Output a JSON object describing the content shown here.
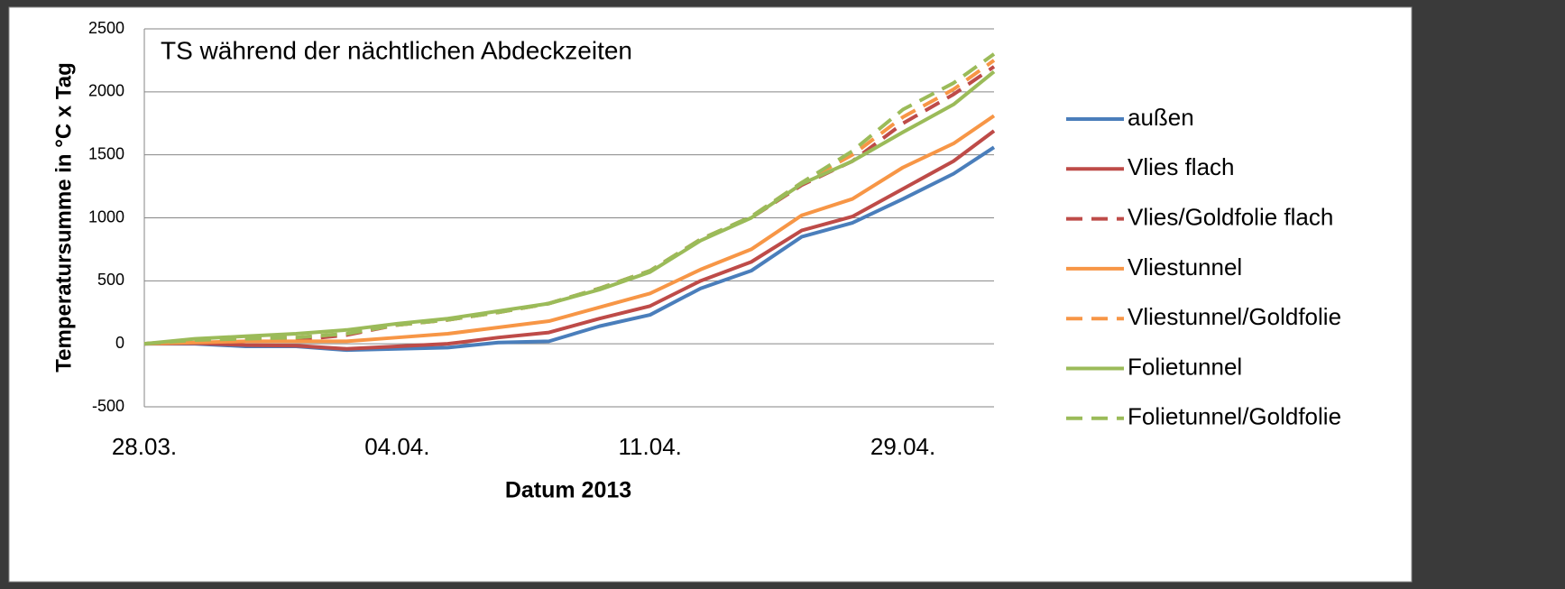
{
  "chart_data": {
    "type": "line",
    "title": "TS während der nächtlichen Abdeckzeiten",
    "x_label": "Datum 2013",
    "y_label": "Temperatursumme in °C x Tag",
    "x": [
      0,
      2,
      4,
      6,
      8,
      10,
      12,
      14,
      16,
      18,
      20,
      22,
      24,
      26,
      28,
      30,
      32,
      33.6
    ],
    "xlim": [
      0,
      33.6
    ],
    "xticks": [
      {
        "value": 0,
        "label": "28.03."
      },
      {
        "value": 10,
        "label": "04.04."
      },
      {
        "value": 20,
        "label": "11.04."
      },
      {
        "value": 30,
        "label": "29.04."
      }
    ],
    "ylim": [
      -500,
      2500
    ],
    "yticks": [
      -500,
      0,
      500,
      1000,
      1500,
      2000,
      2500
    ],
    "grid": true,
    "legend": "right",
    "series": [
      {
        "name": "außen",
        "color": "#4a7ebb",
        "dashed": false,
        "values": [
          0,
          0,
          -20,
          -20,
          -50,
          -40,
          -30,
          10,
          20,
          140,
          230,
          440,
          580,
          850,
          960,
          1150,
          1350,
          1560
        ]
      },
      {
        "name": "Vlies flach",
        "color": "#be4b48",
        "dashed": false,
        "values": [
          0,
          5,
          -10,
          -15,
          -40,
          -20,
          0,
          50,
          90,
          200,
          300,
          500,
          650,
          900,
          1010,
          1230,
          1450,
          1690
        ]
      },
      {
        "name": "Vlies/Goldfolie flach",
        "color": "#be4b48",
        "dashed": true,
        "values": [
          0,
          30,
          40,
          30,
          70,
          150,
          190,
          250,
          320,
          440,
          580,
          830,
          1000,
          1260,
          1450,
          1750,
          1980,
          2200
        ]
      },
      {
        "name": "Vliestunnel",
        "color": "#f79646",
        "dashed": false,
        "values": [
          0,
          10,
          20,
          20,
          20,
          50,
          80,
          130,
          180,
          290,
          400,
          590,
          750,
          1020,
          1150,
          1400,
          1590,
          1810
        ]
      },
      {
        "name": "Vliestunnel/Goldfolie",
        "color": "#f79646",
        "dashed": true,
        "values": [
          0,
          30,
          40,
          50,
          80,
          150,
          190,
          250,
          320,
          440,
          580,
          830,
          1010,
          1280,
          1500,
          1800,
          2020,
          2250
        ]
      },
      {
        "name": "Folietunnel",
        "color": "#9bbb59",
        "dashed": false,
        "values": [
          0,
          40,
          60,
          80,
          110,
          160,
          200,
          260,
          320,
          430,
          570,
          820,
          1000,
          1270,
          1450,
          1680,
          1900,
          2160
        ]
      },
      {
        "name": "Folietunnel/Goldfolie",
        "color": "#9bbb59",
        "dashed": true,
        "values": [
          0,
          30,
          40,
          50,
          80,
          150,
          190,
          250,
          320,
          440,
          580,
          830,
          1010,
          1280,
          1530,
          1860,
          2070,
          2300
        ]
      }
    ]
  }
}
